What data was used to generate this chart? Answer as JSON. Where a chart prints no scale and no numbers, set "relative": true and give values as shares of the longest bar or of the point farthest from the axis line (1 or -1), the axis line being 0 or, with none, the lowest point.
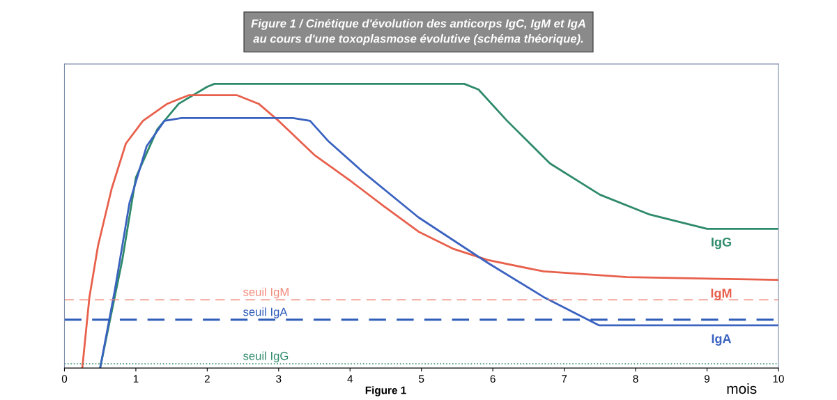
{
  "chart_data": {
    "type": "line",
    "title": "Figure 1 / Cinétique d'évolution des anticorps IgC, IgM et IgA\nau cours d'une toxoplasmose évolutive (schéma théorique).",
    "xlabel": "mois",
    "relative": true,
    "xlim": [
      0,
      10
    ],
    "xticks": [
      0,
      1,
      2,
      3,
      4,
      5,
      6,
      7,
      8,
      9,
      10
    ],
    "grid": false,
    "line_style": "solid",
    "annotations": [
      "Figure 1"
    ],
    "series": [
      {
        "name": "IgG",
        "color": "#2e8a6a",
        "x": [
          0.5,
          0.81,
          1.0,
          1.3,
          1.6,
          2.0,
          2.1,
          5.6,
          5.8,
          6.2,
          6.8,
          7.5,
          8.2,
          9.0,
          10
        ],
        "values": [
          0,
          0.38,
          0.67,
          0.84,
          0.93,
          0.99,
          1.0,
          1.0,
          0.98,
          0.87,
          0.72,
          0.61,
          0.54,
          0.49,
          0.49
        ]
      },
      {
        "name": "IgM",
        "color": "#e8604c",
        "x": [
          0.25,
          0.35,
          0.47,
          0.66,
          0.86,
          1.1,
          1.44,
          1.74,
          2.42,
          2.72,
          3.0,
          3.5,
          4.0,
          4.47,
          4.96,
          5.44,
          5.93,
          6.71,
          7.88,
          10
        ],
        "values": [
          0,
          0.25,
          0.43,
          0.63,
          0.79,
          0.87,
          0.93,
          0.96,
          0.96,
          0.93,
          0.87,
          0.75,
          0.66,
          0.57,
          0.48,
          0.42,
          0.38,
          0.34,
          0.32,
          0.31
        ]
      },
      {
        "name": "IgA",
        "color": "#3a62c0",
        "x": [
          0.5,
          0.71,
          0.91,
          1.15,
          1.4,
          1.64,
          3.2,
          3.44,
          3.69,
          4.18,
          4.96,
          5.93,
          6.71,
          7.49,
          10
        ],
        "values": [
          0,
          0.28,
          0.58,
          0.78,
          0.87,
          0.88,
          0.88,
          0.87,
          0.8,
          0.69,
          0.53,
          0.37,
          0.25,
          0.15,
          0.15
        ]
      }
    ],
    "ref_lines": [
      {
        "axis": "y",
        "value": 0.24,
        "label": "seuil IgM",
        "color": "#f08a7a",
        "line_style": "dashed"
      },
      {
        "axis": "y",
        "value": 0.17,
        "label": "seuil IgA",
        "color": "#2f5cb8",
        "line_style": "dashed"
      },
      {
        "axis": "y",
        "value": 0.015,
        "label": "seuil IgG",
        "color": "#2e8a6a",
        "line_style": "dotted"
      }
    ]
  }
}
